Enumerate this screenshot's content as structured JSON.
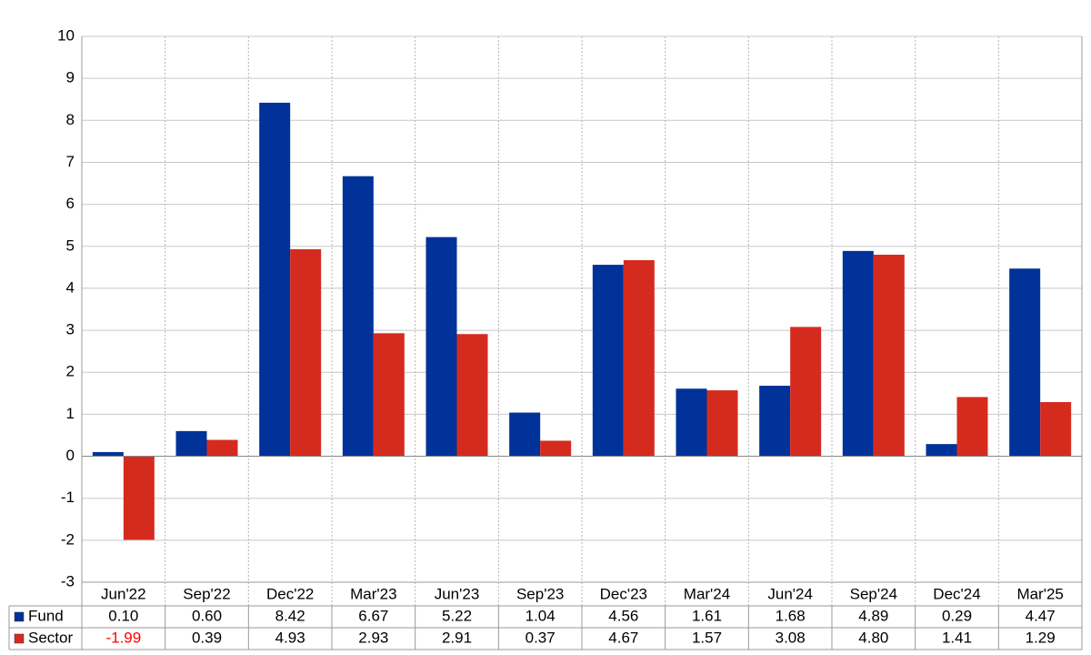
{
  "chart_data": {
    "type": "bar",
    "categories": [
      "Jun'22",
      "Sep'22",
      "Dec'22",
      "Mar'23",
      "Jun'23",
      "Sep'23",
      "Dec'23",
      "Mar'24",
      "Jun'24",
      "Sep'24",
      "Dec'24",
      "Mar'25"
    ],
    "series": [
      {
        "name": "Fund",
        "color": "#003299",
        "values": [
          0.1,
          0.6,
          8.42,
          6.67,
          5.22,
          1.04,
          4.56,
          1.61,
          1.68,
          4.89,
          0.29,
          4.47
        ],
        "value_labels": [
          "0.10",
          "0.60",
          "8.42",
          "6.67",
          "5.22",
          "1.04",
          "4.56",
          "1.61",
          "1.68",
          "4.89",
          "0.29",
          "4.47"
        ]
      },
      {
        "name": "Sector",
        "color": "#d52b1e",
        "values": [
          -1.99,
          0.39,
          4.93,
          2.93,
          2.91,
          0.37,
          4.67,
          1.57,
          3.08,
          4.8,
          1.41,
          1.29
        ],
        "value_labels": [
          "-1.99",
          "0.39",
          "4.93",
          "2.93",
          "2.91",
          "0.37",
          "4.67",
          "1.57",
          "3.08",
          "4.80",
          "1.41",
          "1.29"
        ]
      }
    ],
    "ylim": [
      -3,
      10
    ],
    "yticks": [
      -3,
      -2,
      -1,
      0,
      1,
      2,
      3,
      4,
      5,
      6,
      7,
      8,
      9,
      10
    ],
    "grid": true,
    "negative_label_color": "#ff0000"
  }
}
